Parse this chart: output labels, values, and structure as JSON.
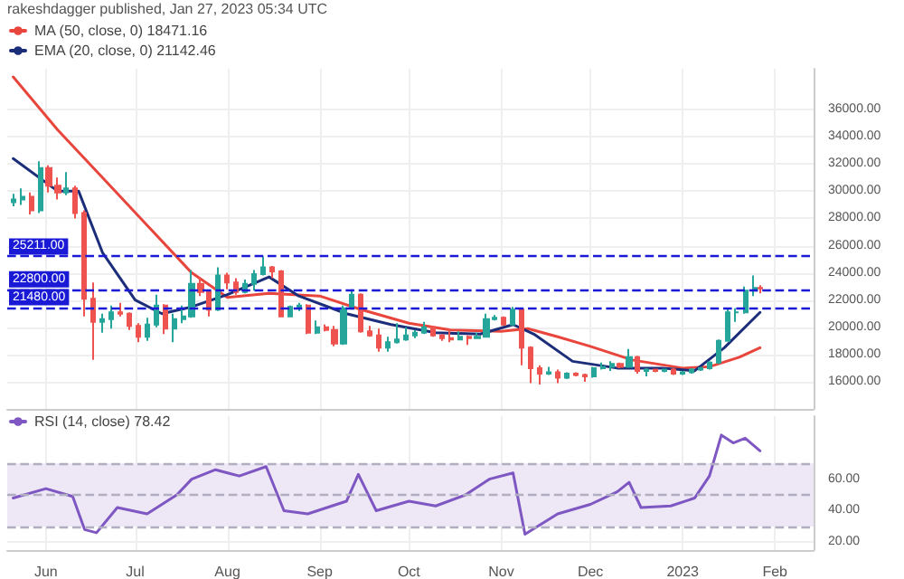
{
  "chart_data": [
    {
      "type": "candlestick",
      "annotations": [
        "rakeshdagger published, Jan 27, 2023 05:34 UTC"
      ],
      "x": [
        "2022-05-21",
        "2022-05-24",
        "2022-05-27",
        "2022-05-30",
        "2022-06-02",
        "2022-06-05",
        "2022-06-08",
        "2022-06-11",
        "2022-06-14",
        "2022-06-17",
        "2022-06-20",
        "2022-06-23",
        "2022-06-26",
        "2022-06-29",
        "2022-07-02",
        "2022-07-05",
        "2022-07-08",
        "2022-07-11",
        "2022-07-14",
        "2022-07-17",
        "2022-07-20",
        "2022-07-23",
        "2022-07-26",
        "2022-07-29",
        "2022-08-01",
        "2022-08-04",
        "2022-08-07",
        "2022-08-10",
        "2022-08-13",
        "2022-08-16",
        "2022-08-19",
        "2022-08-22",
        "2022-08-25",
        "2022-08-28",
        "2022-08-31",
        "2022-09-03",
        "2022-09-06",
        "2022-09-09",
        "2022-09-12",
        "2022-09-15",
        "2022-09-18",
        "2022-09-21",
        "2022-09-24",
        "2022-09-27",
        "2022-09-30",
        "2022-10-03",
        "2022-10-06",
        "2022-10-09",
        "2022-10-12",
        "2022-10-15",
        "2022-10-18",
        "2022-10-21",
        "2022-10-24",
        "2022-10-27",
        "2022-10-30",
        "2022-11-02",
        "2022-11-05",
        "2022-11-08",
        "2022-11-11",
        "2022-11-14",
        "2022-11-17",
        "2022-11-20",
        "2022-11-23",
        "2022-11-26",
        "2022-11-29",
        "2022-12-02",
        "2022-12-05",
        "2022-12-08",
        "2022-12-11",
        "2022-12-14",
        "2022-12-17",
        "2022-12-20",
        "2022-12-23",
        "2022-12-26",
        "2022-12-29",
        "2023-01-01",
        "2023-01-04",
        "2023-01-07",
        "2023-01-10",
        "2023-01-13",
        "2023-01-16",
        "2023-01-19",
        "2023-01-22",
        "2023-01-25",
        "2023-01-27"
      ],
      "ohlc": [
        [
          29200,
          29800,
          28900,
          29400
        ],
        [
          29400,
          30200,
          29000,
          29600
        ],
        [
          29600,
          29900,
          28300,
          28600
        ],
        [
          28600,
          32200,
          28400,
          31700
        ],
        [
          31700,
          31900,
          29900,
          30400
        ],
        [
          30400,
          31000,
          29400,
          29900
        ],
        [
          29900,
          31400,
          29700,
          30200
        ],
        [
          30200,
          30400,
          28000,
          28400
        ],
        [
          28400,
          28600,
          20800,
          22100
        ],
        [
          22100,
          23300,
          17600,
          20400
        ],
        [
          20400,
          21000,
          19600,
          20600
        ],
        [
          20600,
          21600,
          19900,
          21100
        ],
        [
          21100,
          21800,
          20800,
          21000
        ],
        [
          21000,
          21100,
          19800,
          20100
        ],
        [
          20100,
          20300,
          18900,
          19300
        ],
        [
          19300,
          20700,
          19000,
          20200
        ],
        [
          20200,
          22400,
          20000,
          21600
        ],
        [
          21600,
          21700,
          19500,
          19900
        ],
        [
          19900,
          21000,
          18900,
          20600
        ],
        [
          20600,
          21600,
          20300,
          20800
        ],
        [
          20800,
          24200,
          20700,
          23200
        ],
        [
          23200,
          23700,
          22300,
          22600
        ],
        [
          22600,
          22700,
          20800,
          21300
        ],
        [
          21300,
          24400,
          21200,
          23800
        ],
        [
          23800,
          24000,
          22800,
          23300
        ],
        [
          23300,
          23600,
          22400,
          22600
        ],
        [
          22600,
          23500,
          22500,
          23200
        ],
        [
          23200,
          24200,
          22700,
          23900
        ],
        [
          23900,
          25200,
          23800,
          24400
        ],
        [
          24400,
          24500,
          23600,
          24100
        ],
        [
          24100,
          24200,
          20800,
          20800
        ],
        [
          20800,
          21600,
          20800,
          21500
        ],
        [
          21500,
          21800,
          21200,
          21600
        ],
        [
          21600,
          21700,
          19500,
          19600
        ],
        [
          19600,
          20500,
          19500,
          20000
        ],
        [
          20000,
          20200,
          19700,
          19800
        ],
        [
          19800,
          20100,
          18600,
          18800
        ],
        [
          18800,
          21600,
          18700,
          21400
        ],
        [
          21400,
          22800,
          21300,
          22400
        ],
        [
          22400,
          22500,
          19600,
          19700
        ],
        [
          19700,
          20100,
          19300,
          19400
        ],
        [
          19400,
          19900,
          18200,
          18500
        ],
        [
          18500,
          19300,
          18200,
          18900
        ],
        [
          18900,
          20300,
          18800,
          19100
        ],
        [
          19100,
          20000,
          19000,
          19400
        ],
        [
          19400,
          19800,
          19200,
          19600
        ],
        [
          19600,
          20400,
          19500,
          20000
        ],
        [
          20000,
          20100,
          19300,
          19400
        ],
        [
          19400,
          19500,
          19000,
          19200
        ],
        [
          19200,
          19900,
          18900,
          19100
        ],
        [
          19100,
          19700,
          19100,
          19300
        ],
        [
          19300,
          19400,
          18700,
          19200
        ],
        [
          19200,
          19600,
          19200,
          19300
        ],
        [
          19300,
          21000,
          19300,
          20600
        ],
        [
          20600,
          20900,
          20500,
          20700
        ],
        [
          20700,
          20800,
          20100,
          20200
        ],
        [
          20200,
          21500,
          20200,
          21300
        ],
        [
          21300,
          21400,
          17200,
          18500
        ],
        [
          18500,
          18600,
          15900,
          17000
        ],
        [
          17000,
          17200,
          15800,
          16600
        ],
        [
          16600,
          17100,
          16500,
          16700
        ],
        [
          16700,
          16900,
          15900,
          16300
        ],
        [
          16300,
          16700,
          16200,
          16600
        ],
        [
          16600,
          16700,
          16400,
          16500
        ],
        [
          16500,
          16600,
          16000,
          16400
        ],
        [
          16400,
          17100,
          16300,
          17000
        ],
        [
          17000,
          17400,
          16900,
          17100
        ],
        [
          17100,
          17500,
          16800,
          17300
        ],
        [
          17300,
          17400,
          17000,
          17100
        ],
        [
          17100,
          18400,
          17100,
          17800
        ],
        [
          17800,
          17900,
          16600,
          16800
        ],
        [
          16800,
          17000,
          16400,
          16900
        ],
        [
          16900,
          16900,
          16700,
          16800
        ],
        [
          16800,
          16900,
          16700,
          16900
        ],
        [
          16900,
          17000,
          16500,
          16600
        ],
        [
          16600,
          16800,
          16500,
          16700
        ],
        [
          16700,
          17000,
          16600,
          16900
        ],
        [
          16900,
          17100,
          16800,
          17000
        ],
        [
          17000,
          17500,
          16900,
          17400
        ],
        [
          17400,
          19100,
          17300,
          19000
        ],
        [
          19000,
          21400,
          19000,
          21100
        ],
        [
          21100,
          21400,
          20400,
          21100
        ],
        [
          21100,
          23000,
          21000,
          22700
        ],
        [
          22700,
          23800,
          22300,
          22900
        ],
        [
          22900,
          23100,
          22500,
          22860
        ]
      ],
      "series": [
        {
          "type": "line",
          "name": "MA (50, close, 0) 18471.16",
          "color": "#e8463c",
          "x": [
            "2022-05-21",
            "2022-06-05",
            "2022-06-20",
            "2022-07-05",
            "2022-07-20",
            "2022-08-01",
            "2022-08-15",
            "2022-09-01",
            "2022-09-15",
            "2022-10-01",
            "2022-10-15",
            "2022-11-01",
            "2022-11-10",
            "2022-11-20",
            "2022-12-01",
            "2022-12-15",
            "2023-01-01",
            "2023-01-10",
            "2023-01-20",
            "2023-01-27"
          ],
          "values": [
            38400,
            34500,
            31000,
            27500,
            24000,
            22200,
            22500,
            22300,
            21300,
            20300,
            19800,
            19700,
            19900,
            19300,
            18600,
            17600,
            17000,
            17100,
            17800,
            18500
          ]
        },
        {
          "type": "line",
          "name": "EMA (20, close, 0) 21142.46",
          "color": "#1c2e7a",
          "x": [
            "2022-05-21",
            "2022-06-05",
            "2022-06-12",
            "2022-06-20",
            "2022-07-01",
            "2022-07-10",
            "2022-07-20",
            "2022-08-01",
            "2022-08-15",
            "2022-08-25",
            "2022-09-10",
            "2022-09-25",
            "2022-10-10",
            "2022-10-25",
            "2022-11-05",
            "2022-11-12",
            "2022-11-25",
            "2022-12-10",
            "2022-12-25",
            "2023-01-05",
            "2023-01-15",
            "2023-01-27"
          ],
          "values": [
            32400,
            30000,
            30000,
            25500,
            22000,
            21000,
            21500,
            22400,
            23700,
            22300,
            21000,
            20200,
            19600,
            19500,
            20200,
            19500,
            17500,
            17000,
            17000,
            16800,
            18500,
            21100
          ]
        }
      ],
      "ref_lines": [
        {
          "axis": "y",
          "value": 25211,
          "label": "25211.00",
          "color": "#1a1ad6",
          "line_style": "dashed"
        },
        {
          "axis": "y",
          "value": 22800,
          "label": "22800.00",
          "color": "#1a1ad6",
          "line_style": "dashed"
        },
        {
          "axis": "y",
          "value": 21480,
          "label": "21480.00",
          "color": "#1a1ad6",
          "line_style": "dashed"
        }
      ],
      "xlim": [
        "2022-05-19",
        "2023-02-14"
      ],
      "xticks": [
        {
          "value": "2022-06-01",
          "label": null
        },
        {
          "value": "2022-07-01",
          "label": null
        },
        {
          "value": "2022-08-01",
          "label": null
        },
        {
          "value": "2022-09-01",
          "label": null
        },
        {
          "value": "2022-10-01",
          "label": null
        },
        {
          "value": "2022-11-01",
          "label": null
        },
        {
          "value": "2022-12-01",
          "label": null
        },
        {
          "value": "2023-01-01",
          "label": null
        },
        {
          "value": "2023-02-01",
          "label": null
        }
      ],
      "ylim": [
        14000,
        39000
      ],
      "yticks": [
        {
          "value": 16000,
          "label": "16000.00"
        },
        {
          "value": 18000,
          "label": "18000.00"
        },
        {
          "value": 20000,
          "label": "20000.00"
        },
        {
          "value": 22000,
          "label": "22000.00"
        },
        {
          "value": 24000,
          "label": "24000.00"
        },
        {
          "value": 26000,
          "label": "26000.00"
        },
        {
          "value": 28000,
          "label": "28000.00"
        },
        {
          "value": 30000,
          "label": "30000.00"
        },
        {
          "value": 32000,
          "label": "32000.00"
        },
        {
          "value": 34000,
          "label": "34000.00"
        },
        {
          "value": 36000,
          "label": "36000.00"
        }
      ],
      "tick_labels": "y",
      "grid": true,
      "legend": "top left"
    },
    {
      "type": "line",
      "series": [
        {
          "name": "RSI (14, close) 78.42",
          "color": "#7e57c2",
          "x": [
            "2022-05-21",
            "2022-06-01",
            "2022-06-10",
            "2022-06-14",
            "2022-06-18",
            "2022-06-25",
            "2022-07-05",
            "2022-07-15",
            "2022-07-20",
            "2022-07-28",
            "2022-08-05",
            "2022-08-14",
            "2022-08-20",
            "2022-08-28",
            "2022-09-10",
            "2022-09-14",
            "2022-09-20",
            "2022-10-01",
            "2022-10-10",
            "2022-10-20",
            "2022-10-28",
            "2022-11-05",
            "2022-11-09",
            "2022-11-20",
            "2022-12-01",
            "2022-12-10",
            "2022-12-14",
            "2022-12-18",
            "2022-12-28",
            "2023-01-05",
            "2023-01-10",
            "2023-01-14",
            "2023-01-18",
            "2023-01-22",
            "2023-01-27"
          ],
          "values": [
            48,
            54,
            49,
            28,
            26,
            42,
            38,
            50,
            60,
            66,
            62,
            68,
            40,
            38,
            46,
            63,
            40,
            46,
            43,
            50,
            60,
            64,
            25,
            38,
            44,
            52,
            58,
            42,
            43,
            48,
            62,
            88,
            83,
            86,
            78
          ]
        }
      ],
      "bands": [
        {
          "axis": "y",
          "from": 30,
          "to": 70,
          "color": "#ede7f6"
        }
      ],
      "ref_lines": [
        {
          "axis": "y",
          "value": 70,
          "label": null,
          "color": "#b0aec0",
          "line_style": "dashed"
        },
        {
          "axis": "y",
          "value": 50,
          "label": null,
          "color": "#b0aec0",
          "line_style": "dashed"
        },
        {
          "axis": "y",
          "value": 30,
          "label": null,
          "color": "#b0aec0",
          "line_style": "dashed"
        }
      ],
      "xlim": [
        "2022-05-19",
        "2023-02-14"
      ],
      "xticks": [
        {
          "value": "2022-06-01",
          "label": "Jun"
        },
        {
          "value": "2022-07-01",
          "label": "Jul"
        },
        {
          "value": "2022-08-01",
          "label": "Aug"
        },
        {
          "value": "2022-09-01",
          "label": "Sep"
        },
        {
          "value": "2022-10-01",
          "label": "Oct"
        },
        {
          "value": "2022-11-01",
          "label": "Nov"
        },
        {
          "value": "2022-12-01",
          "label": "Dec"
        },
        {
          "value": "2023-01-01",
          "label": "2023"
        },
        {
          "value": "2023-02-01",
          "label": "Feb"
        }
      ],
      "ylim": [
        15,
        100
      ],
      "yticks": [
        {
          "value": 20,
          "label": "20.00"
        },
        {
          "value": 40,
          "label": "40.00"
        },
        {
          "value": 60,
          "label": "60.00"
        }
      ],
      "grid": true,
      "legend": "top left"
    }
  ]
}
